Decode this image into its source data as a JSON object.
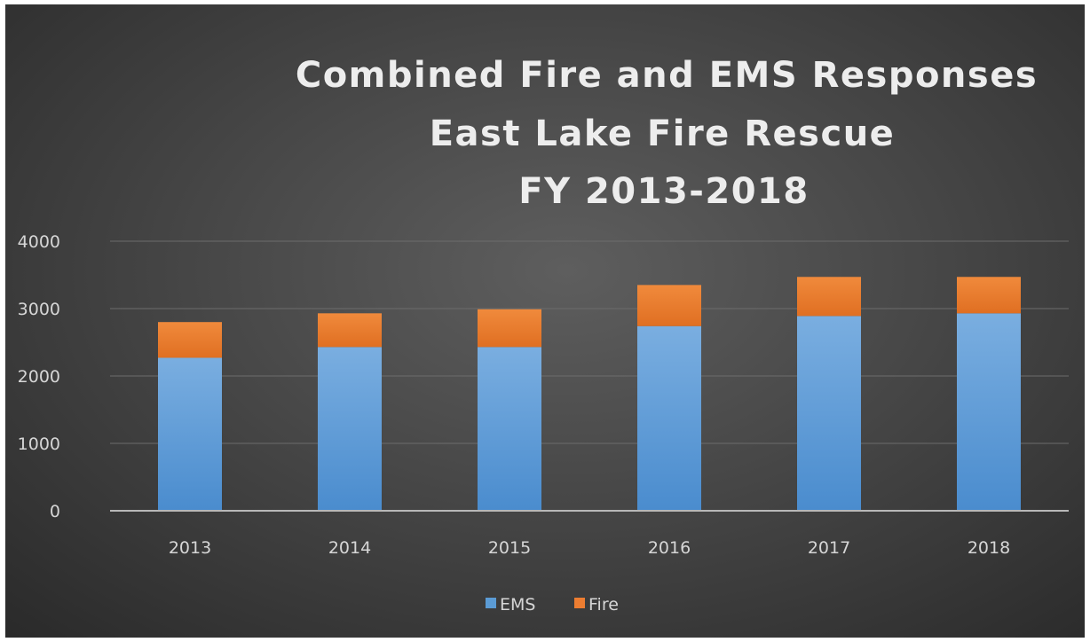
{
  "chart_data": {
    "type": "bar",
    "stacked": true,
    "title": [
      "Combined Fire and EMS Responses",
      "East Lake Fire Rescue",
      "FY 2013-2018"
    ],
    "categories": [
      "2013",
      "2014",
      "2015",
      "2016",
      "2017",
      "2018"
    ],
    "series": [
      {
        "name": "EMS",
        "color": "#5b9bd5",
        "values": [
          2270,
          2430,
          2430,
          2740,
          2890,
          2930
        ]
      },
      {
        "name": "Fire",
        "color": "#ed7d31",
        "values": [
          530,
          500,
          560,
          610,
          580,
          540
        ]
      }
    ],
    "ylim": [
      0,
      4000
    ],
    "yticks": [
      "0",
      "1000",
      "2000",
      "3000",
      "4000"
    ],
    "grid": true,
    "legend": "bottom-center"
  }
}
